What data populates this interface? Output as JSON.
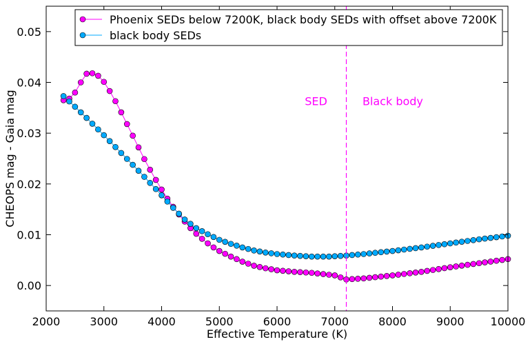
{
  "chart_data": {
    "type": "line",
    "title": "",
    "xlabel": "Effective Temperature (K)",
    "ylabel": "CHEOPS mag - Gaia mag",
    "xlim": [
      2000,
      10000
    ],
    "ylim": [
      -0.005,
      0.055
    ],
    "xticks": [
      2000,
      3000,
      4000,
      5000,
      6000,
      7000,
      8000,
      9000,
      10000
    ],
    "yticks": [
      0.0,
      0.01,
      0.02,
      0.03,
      0.04,
      0.05
    ],
    "xtick_labels": [
      "2000",
      "3000",
      "4000",
      "5000",
      "6000",
      "7000",
      "8000",
      "9000",
      "10000"
    ],
    "ytick_labels": [
      "0.00",
      "0.01",
      "0.02",
      "0.03",
      "0.04",
      "0.05"
    ],
    "grid": false,
    "legend_position": "top-right",
    "series": [
      {
        "name": "Phoenix SEDs below 7200K, black body SEDs with offset above 7200K",
        "color": "#ff00ff",
        "edge_color": "#000000",
        "x_range": [
          2300,
          10000
        ],
        "x_step": 100,
        "anchors": [
          [
            2300,
            0.0365
          ],
          [
            2400,
            0.0368
          ],
          [
            2500,
            0.038
          ],
          [
            2600,
            0.04
          ],
          [
            2700,
            0.0417
          ],
          [
            2800,
            0.0418
          ],
          [
            2900,
            0.0413
          ],
          [
            3000,
            0.0401
          ],
          [
            3100,
            0.0383
          ],
          [
            3200,
            0.0363
          ],
          [
            3300,
            0.0341
          ],
          [
            3400,
            0.0318
          ],
          [
            3500,
            0.0295
          ],
          [
            3600,
            0.0272
          ],
          [
            3700,
            0.0249
          ],
          [
            3800,
            0.0228
          ],
          [
            3900,
            0.0208
          ],
          [
            4000,
            0.0189
          ],
          [
            4100,
            0.0171
          ],
          [
            4200,
            0.0155
          ],
          [
            4300,
            0.014
          ],
          [
            4400,
            0.0126
          ],
          [
            4500,
            0.0113
          ],
          [
            4600,
            0.0102
          ],
          [
            4700,
            0.0092
          ],
          [
            4800,
            0.0083
          ],
          [
            4900,
            0.0075
          ],
          [
            5000,
            0.0068
          ],
          [
            5200,
            0.0057
          ],
          [
            5400,
            0.0047
          ],
          [
            5600,
            0.0039
          ],
          [
            5800,
            0.0034
          ],
          [
            6000,
            0.003
          ],
          [
            6300,
            0.0027
          ],
          [
            6600,
            0.0025
          ],
          [
            7000,
            0.002
          ],
          [
            7200,
            0.0012
          ],
          [
            7500,
            0.0014
          ],
          [
            8000,
            0.002
          ],
          [
            8500,
            0.0027
          ],
          [
            9000,
            0.0036
          ],
          [
            9500,
            0.0044
          ],
          [
            10000,
            0.0052
          ]
        ]
      },
      {
        "name": "black body SEDs",
        "color": "#00aaff",
        "edge_color": "#000000",
        "x_range": [
          2300,
          10000
        ],
        "x_step": 100,
        "anchors": [
          [
            2300,
            0.0373
          ],
          [
            2500,
            0.0352
          ],
          [
            2700,
            0.033
          ],
          [
            3000,
            0.0296
          ],
          [
            3300,
            0.0261
          ],
          [
            3600,
            0.0226
          ],
          [
            3900,
            0.019
          ],
          [
            4200,
            0.0153
          ],
          [
            4400,
            0.013
          ],
          [
            4600,
            0.0113
          ],
          [
            4800,
            0.0101
          ],
          [
            5000,
            0.009
          ],
          [
            5200,
            0.0082
          ],
          [
            5400,
            0.0075
          ],
          [
            5600,
            0.0069
          ],
          [
            5800,
            0.0065
          ],
          [
            6000,
            0.0062
          ],
          [
            6300,
            0.0059
          ],
          [
            6600,
            0.0057
          ],
          [
            6900,
            0.0057
          ],
          [
            7200,
            0.0059
          ],
          [
            7500,
            0.0062
          ],
          [
            8000,
            0.0068
          ],
          [
            8500,
            0.0075
          ],
          [
            9000,
            0.0083
          ],
          [
            9500,
            0.0091
          ],
          [
            10000,
            0.0098
          ]
        ]
      }
    ],
    "vline": {
      "x": 7200,
      "color": "#ff00ff",
      "style": "dashed"
    },
    "annotations": [
      {
        "text": "SED",
        "x": 6480,
        "y": 0.0355,
        "color": "#ff00ff"
      },
      {
        "text": "Black body",
        "x": 7480,
        "y": 0.0355,
        "color": "#ff00ff"
      }
    ]
  }
}
